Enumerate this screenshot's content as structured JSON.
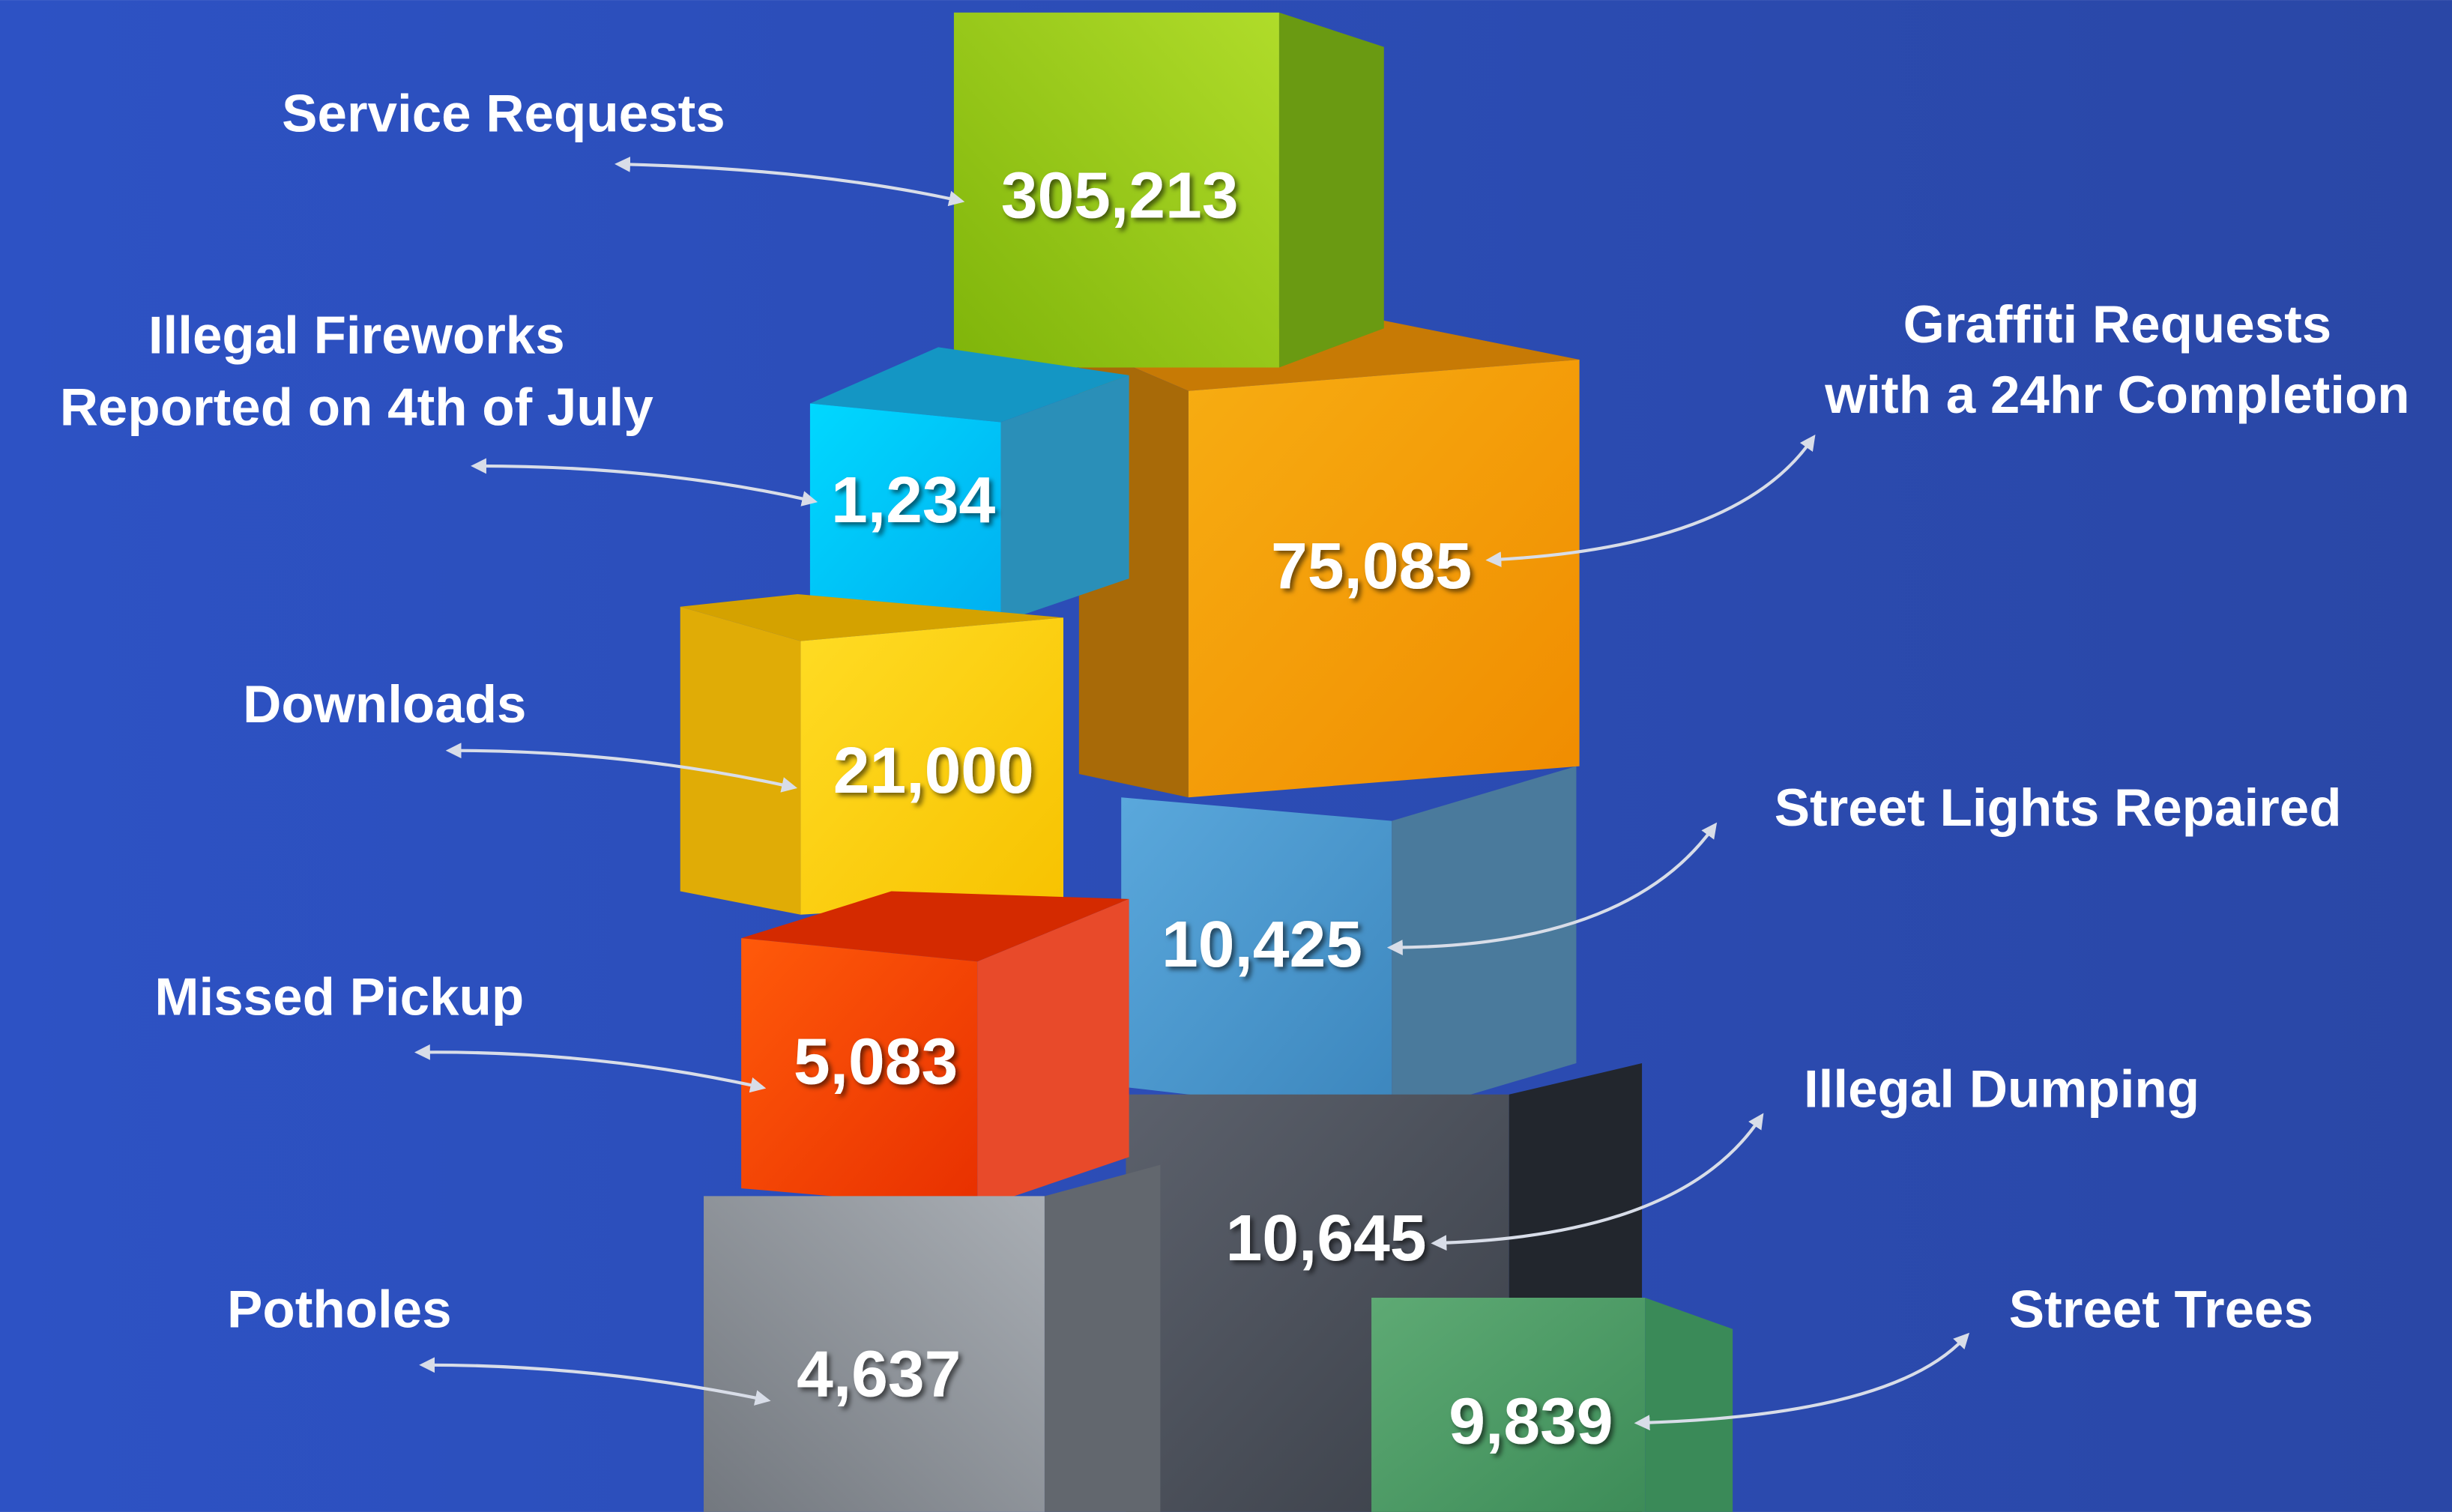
{
  "items": [
    {
      "label": [
        "Service Requests"
      ],
      "value": "305,213"
    },
    {
      "label": [
        "Illegal Fireworks",
        "Reported on 4th of July"
      ],
      "value": "1,234"
    },
    {
      "label": [
        "Graffiti Requests",
        "with a 24hr Completion"
      ],
      "value": "75,085"
    },
    {
      "label": [
        "Downloads"
      ],
      "value": "21,000"
    },
    {
      "label": [
        "Street Lights Repaired"
      ],
      "value": "10,425"
    },
    {
      "label": [
        "Missed Pickup"
      ],
      "value": "5,083"
    },
    {
      "label": [
        "Illegal Dumping"
      ],
      "value": "10,645"
    },
    {
      "label": [
        "Potholes"
      ],
      "value": "4,637"
    },
    {
      "label": [
        "Street Trees"
      ],
      "value": "9,839"
    }
  ]
}
